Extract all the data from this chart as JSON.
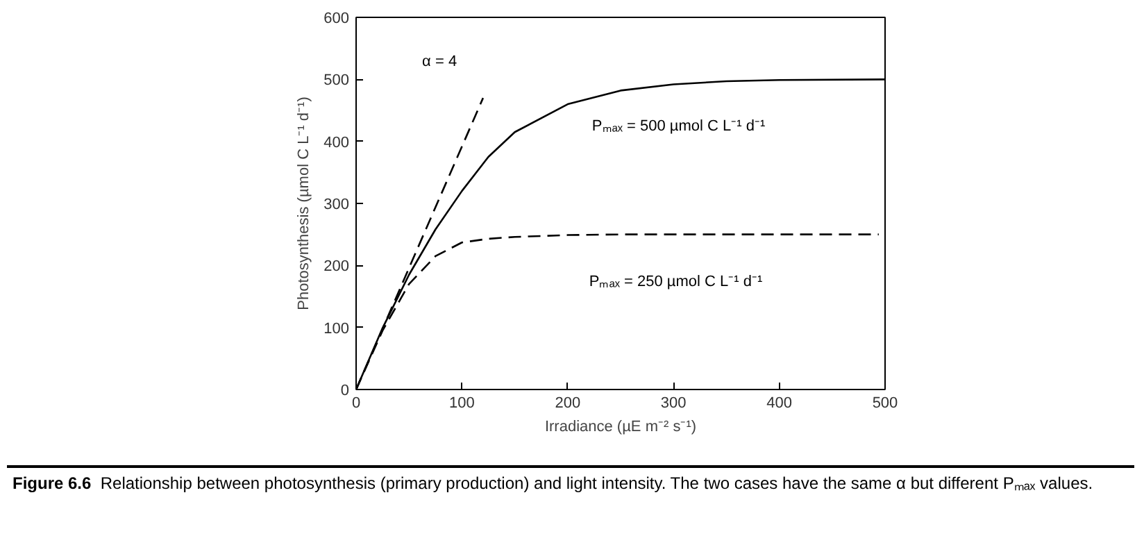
{
  "chart_data": {
    "type": "line",
    "xlabel": "Irradiance (µE m⁻² s⁻¹)",
    "ylabel": "Photosynthesis (µmol C L⁻¹ d⁻¹)",
    "xlim": [
      0,
      500
    ],
    "ylim": [
      0,
      600
    ],
    "xticks": [
      0,
      100,
      200,
      300,
      400,
      500
    ],
    "yticks": [
      0,
      100,
      200,
      300,
      400,
      500,
      600
    ],
    "grid": false,
    "marker": "none",
    "series": [
      {
        "name": "Pₘₐₓ = 500 µmol C L⁻¹ d⁻¹",
        "color": "#000000",
        "line_style": "solid",
        "x": [
          0,
          25,
          50,
          75,
          100,
          125,
          150,
          200,
          250,
          300,
          350,
          400,
          500
        ],
        "values": [
          0,
          99,
          185,
          258,
          320,
          375,
          415,
          460,
          482,
          492,
          497,
          499,
          500
        ]
      },
      {
        "name": "Pₘₐₓ = 250 µmol C L⁻¹ d⁻¹",
        "color": "#000000",
        "line_style": "dashed",
        "x": [
          0,
          25,
          50,
          75,
          100,
          125,
          150,
          200,
          250,
          494
        ],
        "values": [
          0,
          95,
          170,
          215,
          237,
          243,
          246,
          249,
          250,
          250
        ]
      },
      {
        "name": "α = 4",
        "color": "#000000",
        "line_style": "dashed",
        "x": [
          0,
          120
        ],
        "values": [
          0,
          470
        ]
      }
    ],
    "annotations": [
      "Figure 6.6",
      "Relationship between photosynthesis (primary production) and light intensity. The two cases have the same α but different Pₘₐₓ values."
    ]
  }
}
